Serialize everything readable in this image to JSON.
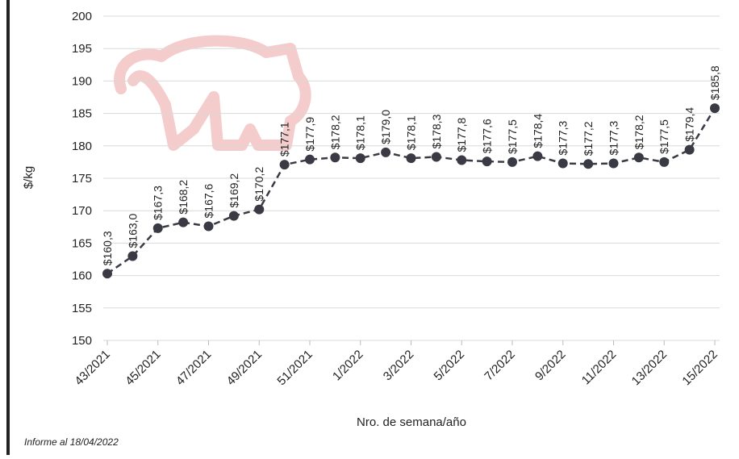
{
  "chart_data": {
    "type": "line",
    "y_label": "$/kg",
    "x_label": "Nro. de semana/año",
    "footnote": "Informe al 18/04/2022",
    "categories": [
      "43/2021",
      null,
      "45/2021",
      null,
      "47/2021",
      null,
      "49/2021",
      null,
      "51/2021",
      null,
      "1/2022",
      null,
      "3/2022",
      null,
      "5/2022",
      null,
      "7/2022",
      null,
      "9/2022",
      null,
      "11/2022",
      null,
      "13/2022",
      null,
      "15/2022"
    ],
    "values": [
      160.3,
      163.0,
      167.3,
      168.2,
      167.6,
      169.2,
      170.2,
      177.1,
      177.9,
      178.2,
      178.1,
      179.0,
      178.1,
      178.3,
      177.8,
      177.6,
      177.5,
      178.4,
      177.3,
      177.2,
      177.3,
      178.2,
      177.5,
      179.4,
      185.8
    ],
    "value_labels": [
      "$160,3",
      "$163,0",
      "$167,3",
      "$168,2",
      "$167,6",
      "$169,2",
      "$170,2",
      "$177,1",
      "$177,9",
      "$178,2",
      "$178,1",
      "$179,0",
      "$178,1",
      "$178,3",
      "$177,8",
      "$177,6",
      "$177,5",
      "$178,4",
      "$177,3",
      "$177,2",
      "$177,3",
      "$178,2",
      "$177,5",
      "$179,4",
      "$185,8"
    ],
    "color": "#3a3a44",
    "ylim": [
      150,
      200
    ],
    "yticks": [
      150,
      155,
      160,
      165,
      170,
      175,
      180,
      185,
      190,
      195,
      200
    ],
    "grid": true
  }
}
